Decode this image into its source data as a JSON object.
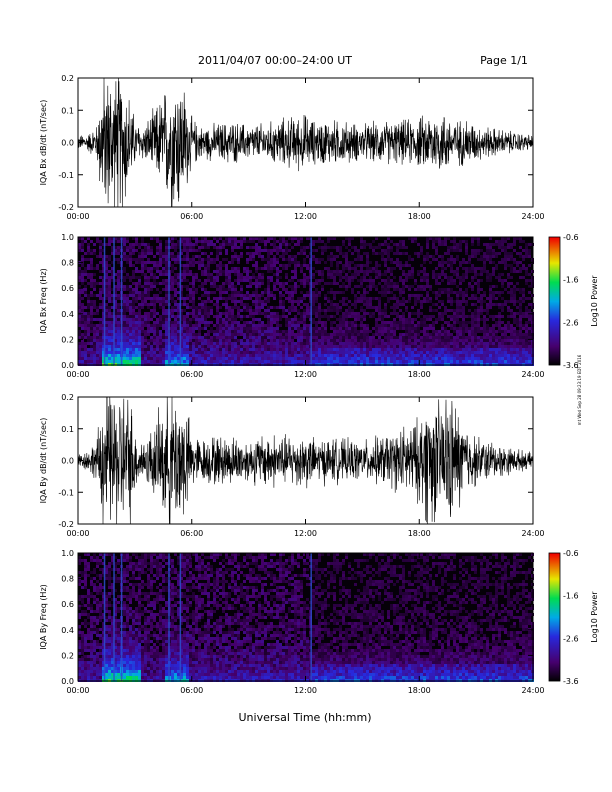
{
  "header": {
    "date_range": "2011/04/07  00:00–24:00 UT",
    "page": "Page 1/1"
  },
  "footer": {
    "xlabel": "Universal Time (hh:mm)",
    "side_note": "mt  Wed Sep 28 09:23:19 EDT 2016"
  },
  "chart_data": [
    {
      "type": "line",
      "name": "bx-waveform",
      "ylabel": "IQA Bx dB/dt (nT/sec)",
      "xlim": [
        0,
        24
      ],
      "ylim": [
        -0.2,
        0.2
      ],
      "xticks": [
        "00:00",
        "06:00",
        "12:00",
        "18:00",
        "24:00"
      ],
      "yticks": [
        "-0.2",
        "-0.1",
        "0.0",
        "0.1",
        "0.2"
      ],
      "envelope": {
        "hour": [
          0,
          0.5,
          1,
          1.3,
          1.6,
          2,
          2.4,
          2.8,
          3,
          3.5,
          4,
          4.5,
          5,
          5.3,
          5.6,
          6,
          6.5,
          7,
          8,
          9,
          10,
          11,
          12,
          12.5,
          13,
          14,
          15,
          16,
          17,
          18,
          18.5,
          19,
          19.5,
          20,
          20.5,
          21,
          22,
          23,
          24
        ],
        "amp": [
          0.02,
          0.025,
          0.05,
          0.2,
          0.2,
          0.2,
          0.2,
          0.12,
          0.06,
          0.05,
          0.09,
          0.14,
          0.2,
          0.2,
          0.16,
          0.07,
          0.045,
          0.05,
          0.06,
          0.05,
          0.055,
          0.07,
          0.08,
          0.06,
          0.065,
          0.06,
          0.05,
          0.06,
          0.06,
          0.07,
          0.08,
          0.09,
          0.08,
          0.06,
          0.07,
          0.05,
          0.04,
          0.03,
          0.02
        ]
      }
    },
    {
      "type": "heatmap",
      "name": "bx-spectrogram",
      "ylabel": "IQA Bx Freq (Hz)",
      "xlim": [
        0,
        24
      ],
      "ylim": [
        0,
        1.0
      ],
      "xticks": [
        "00:00",
        "06:00",
        "12:00",
        "18:00",
        "24:00"
      ],
      "yticks": [
        "0.0",
        "0.2",
        "0.4",
        "0.6",
        "0.8",
        "1.0"
      ],
      "colorbar": {
        "label": "Log10 Power",
        "range": [
          -3.6,
          -0.6
        ],
        "ticks": [
          "-0.6",
          "-1.6",
          "-2.6",
          "-3.6"
        ]
      },
      "vertical_bursts_hour": [
        1.4,
        1.9,
        2.3,
        4.8,
        5.4,
        12.3
      ]
    },
    {
      "type": "line",
      "name": "by-waveform",
      "ylabel": "IQA By dB/dt (nT/sec)",
      "xlim": [
        0,
        24
      ],
      "ylim": [
        -0.2,
        0.2
      ],
      "xticks": [
        "00:00",
        "06:00",
        "12:00",
        "18:00",
        "24:00"
      ],
      "yticks": [
        "-0.2",
        "-0.1",
        "0.0",
        "0.1",
        "0.2"
      ],
      "envelope": {
        "hour": [
          0,
          0.5,
          1,
          1.3,
          1.6,
          2,
          2.4,
          2.8,
          3,
          3.5,
          4,
          4.5,
          5,
          5.3,
          5.6,
          6,
          6.5,
          7,
          8,
          9,
          10,
          11,
          12,
          12.5,
          13,
          14,
          15,
          16,
          17,
          18,
          18.5,
          19,
          19.5,
          20,
          20.5,
          21,
          22,
          23,
          24
        ],
        "amp": [
          0.02,
          0.03,
          0.06,
          0.2,
          0.2,
          0.2,
          0.2,
          0.18,
          0.08,
          0.06,
          0.1,
          0.16,
          0.2,
          0.2,
          0.18,
          0.08,
          0.06,
          0.07,
          0.07,
          0.06,
          0.08,
          0.07,
          0.08,
          0.06,
          0.065,
          0.06,
          0.055,
          0.07,
          0.09,
          0.12,
          0.2,
          0.16,
          0.2,
          0.15,
          0.1,
          0.07,
          0.05,
          0.035,
          0.02
        ]
      }
    },
    {
      "type": "heatmap",
      "name": "by-spectrogram",
      "ylabel": "IQA By Freq (Hz)",
      "xlim": [
        0,
        24
      ],
      "ylim": [
        0,
        1.0
      ],
      "xticks": [
        "00:00",
        "06:00",
        "12:00",
        "18:00",
        "24:00"
      ],
      "yticks": [
        "0.0",
        "0.2",
        "0.4",
        "0.6",
        "0.8",
        "1.0"
      ],
      "colorbar": {
        "label": "Log10 Power",
        "range": [
          -3.6,
          -0.6
        ],
        "ticks": [
          "-0.6",
          "-1.6",
          "-2.6",
          "-3.6"
        ]
      },
      "vertical_bursts_hour": [
        1.4,
        1.9,
        2.3,
        4.8,
        5.4,
        12.3
      ]
    }
  ]
}
